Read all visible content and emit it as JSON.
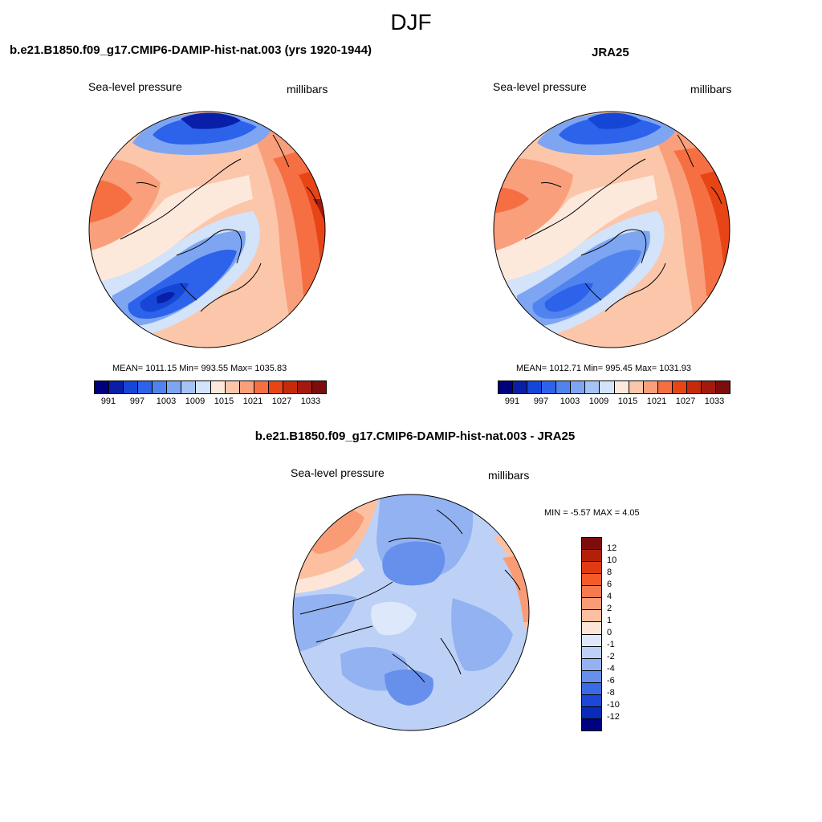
{
  "figure": {
    "season": "DJF"
  },
  "panels": [
    {
      "id": "model",
      "title": "b.e21.B1850.f09_g17.CMIP6-DAMIP-hist-nat.003 (yrs 1920-1944)",
      "variable": "Sea-level pressure",
      "units": "millibars",
      "stats": "MEAN= 1011.15  Min= 993.55  Max= 1035.83"
    },
    {
      "id": "obs",
      "title": "JRA25",
      "variable": "Sea-level pressure",
      "units": "millibars",
      "stats": "MEAN= 1012.71  Min= 995.45  Max= 1031.93"
    },
    {
      "id": "diff",
      "title": "b.e21.B1850.f09_g17.CMIP6-DAMIP-hist-nat.003 - JRA25",
      "variable": "Sea-level pressure",
      "units": "millibars",
      "stats": "MIN =  -5.57 MAX =   4.05"
    }
  ],
  "colorbars": {
    "absolute": {
      "colors": [
        "#00007f",
        "#0a1fa8",
        "#1646d6",
        "#2d62eb",
        "#5083ee",
        "#7ea5f2",
        "#a6c3f5",
        "#d2e3fa",
        "#fde9dc",
        "#fcc6aa",
        "#f99f7b",
        "#f66f43",
        "#e84516",
        "#c62a0a",
        "#a3190d",
        "#7d0d0d"
      ],
      "labels": [
        "991",
        "997",
        "1003",
        "1009",
        "1015",
        "1021",
        "1027",
        "1033"
      ]
    },
    "difference": {
      "colors_top_to_bottom": [
        "#7d0d0d",
        "#b2200b",
        "#e03a12",
        "#f55a2b",
        "#f77a4e",
        "#f99c76",
        "#fcc0a1",
        "#fde6d8",
        "#dde9fb",
        "#bdd1f7",
        "#93b2f2",
        "#6790ed",
        "#3a6ae6",
        "#1d47d9",
        "#0a2bb8",
        "#000080"
      ],
      "labels": [
        "12",
        "10",
        "8",
        "6",
        "4",
        "2",
        "1",
        "0",
        "-1",
        "-2",
        "-4",
        "-6",
        "-8",
        "-10",
        "-12"
      ]
    }
  }
}
